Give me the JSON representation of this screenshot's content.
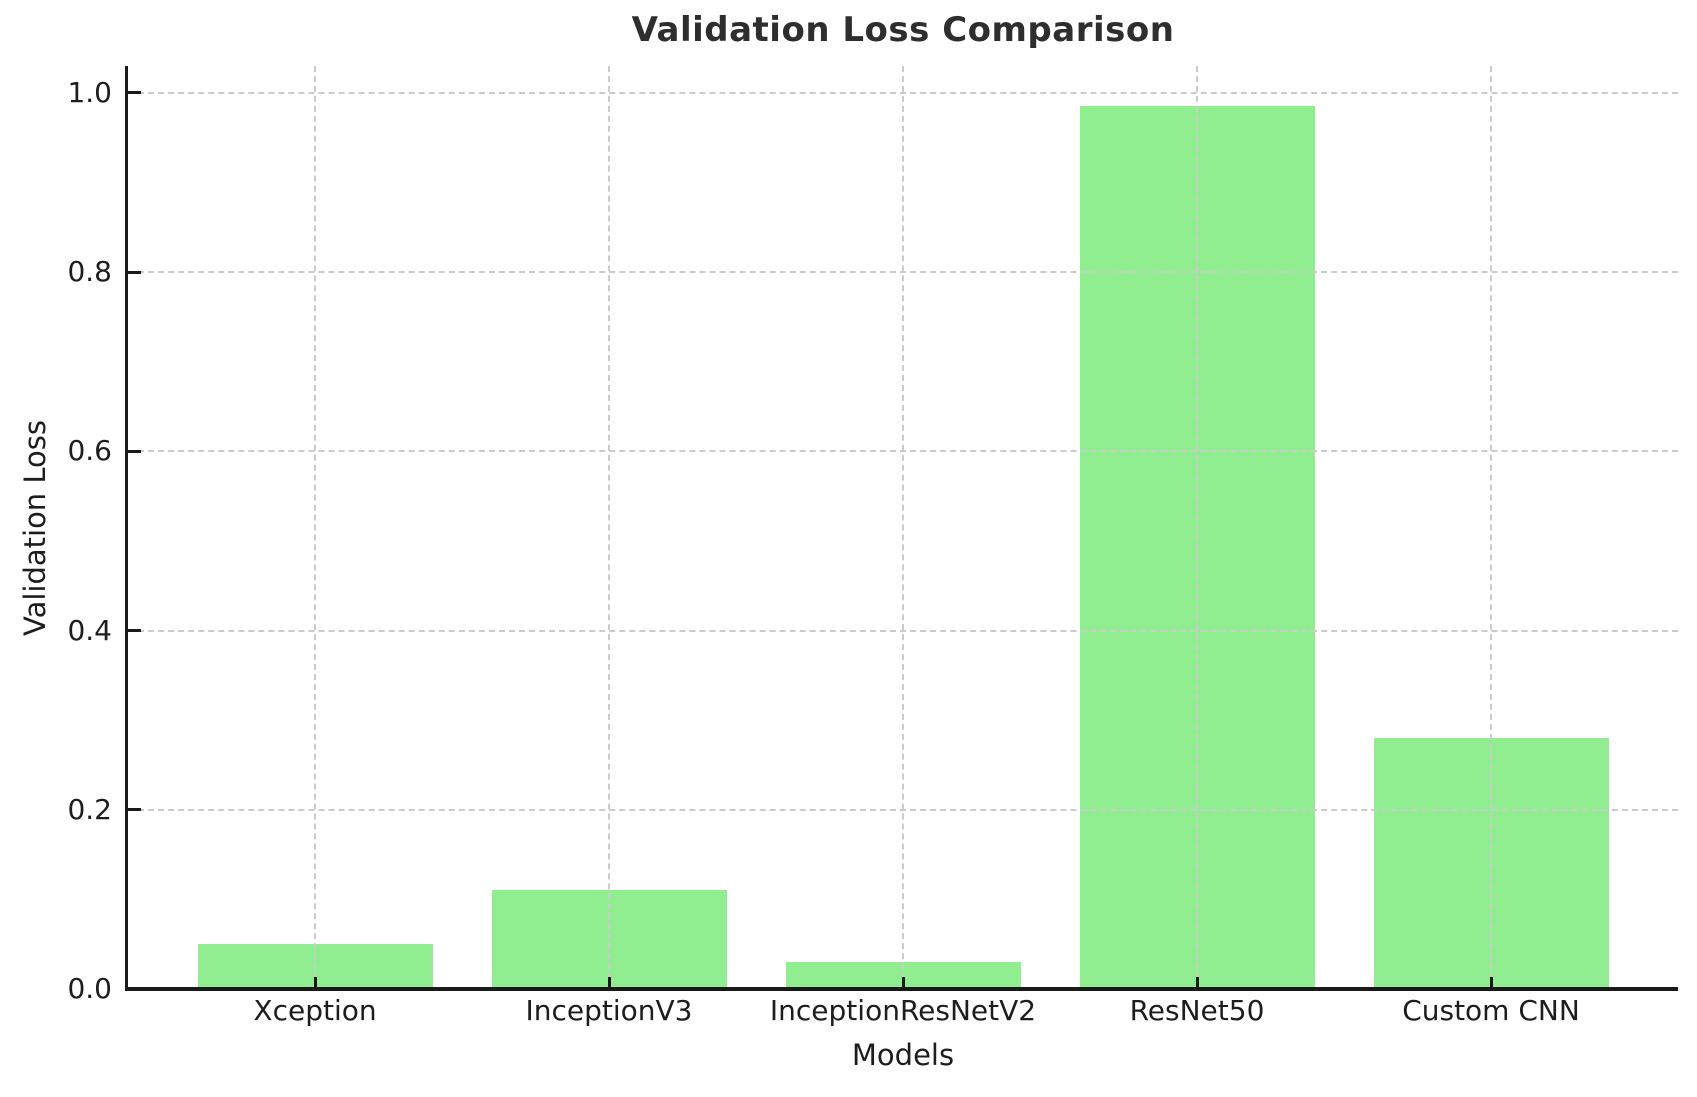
{
  "figure": {
    "title": "Validation Loss Comparison",
    "xlabel": "Models",
    "ylabel": "Validation Loss"
  },
  "chart_data": {
    "type": "bar",
    "title": "Validation Loss Comparison",
    "xlabel": "Models",
    "ylabel": "Validation Loss",
    "categories": [
      "Xception",
      "InceptionV3",
      "InceptionResNetV2",
      "ResNet50",
      "Custom CNN"
    ],
    "values": [
      0.05,
      0.11,
      0.03,
      0.985,
      0.28
    ],
    "yticks": [
      0.0,
      0.2,
      0.4,
      0.6,
      0.8,
      1.0
    ],
    "ytick_labels": [
      "0.0",
      "0.2",
      "0.4",
      "0.6",
      "0.8",
      "1.0"
    ],
    "ylim": [
      0,
      1.03
    ],
    "grid": {
      "on": true,
      "style": "dashed",
      "axes": "both",
      "drawn_above_bars": true
    },
    "legend": "none",
    "colors": {
      "bar": "#90EE90",
      "grid": "#cbcbcb",
      "spine": "#1a1a1a",
      "title_text": "#2e2e2e",
      "tick_text": "#1d1d1d"
    }
  }
}
